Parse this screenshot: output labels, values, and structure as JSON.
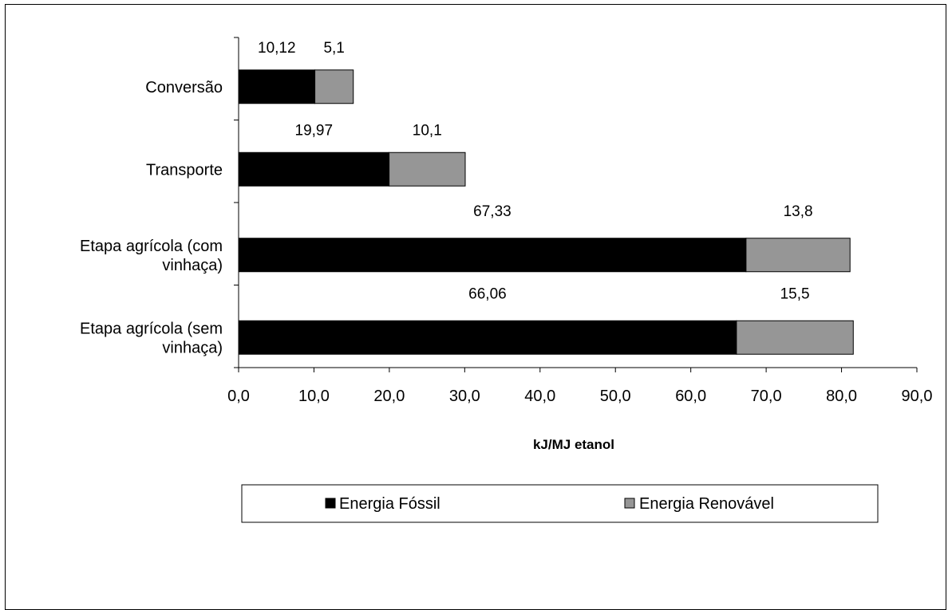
{
  "chart_data": {
    "type": "bar",
    "orientation": "horizontal",
    "stacked": true,
    "categories": [
      [
        "Conversão"
      ],
      [
        "Transporte"
      ],
      [
        "Etapa agrícola (com",
        "vinhaça)"
      ],
      [
        "Etapa agrícola (sem",
        "vinhaça)"
      ]
    ],
    "series": [
      {
        "name": "Energia Fóssil",
        "color": "#000000",
        "values": [
          10.12,
          19.97,
          67.33,
          66.06
        ],
        "labels": [
          "10,12",
          "19,97",
          "67,33",
          "66,06"
        ]
      },
      {
        "name": "Energia Renovável",
        "color": "#969696",
        "values": [
          5.1,
          10.1,
          13.8,
          15.5
        ],
        "labels": [
          "5,1",
          "10,1",
          "13,8",
          "15,5"
        ]
      }
    ],
    "xlim": [
      0,
      90
    ],
    "xticks": [
      0,
      10,
      20,
      30,
      40,
      50,
      60,
      70,
      80,
      90
    ],
    "xtick_labels": [
      "0,0",
      "10,0",
      "20,0",
      "30,0",
      "40,0",
      "50,0",
      "60,0",
      "70,0",
      "80,0",
      "90,0"
    ],
    "xlabel": "kJ/MJ etanol",
    "ylabel": "",
    "title": "",
    "grid": false,
    "legend_position": "bottom"
  }
}
